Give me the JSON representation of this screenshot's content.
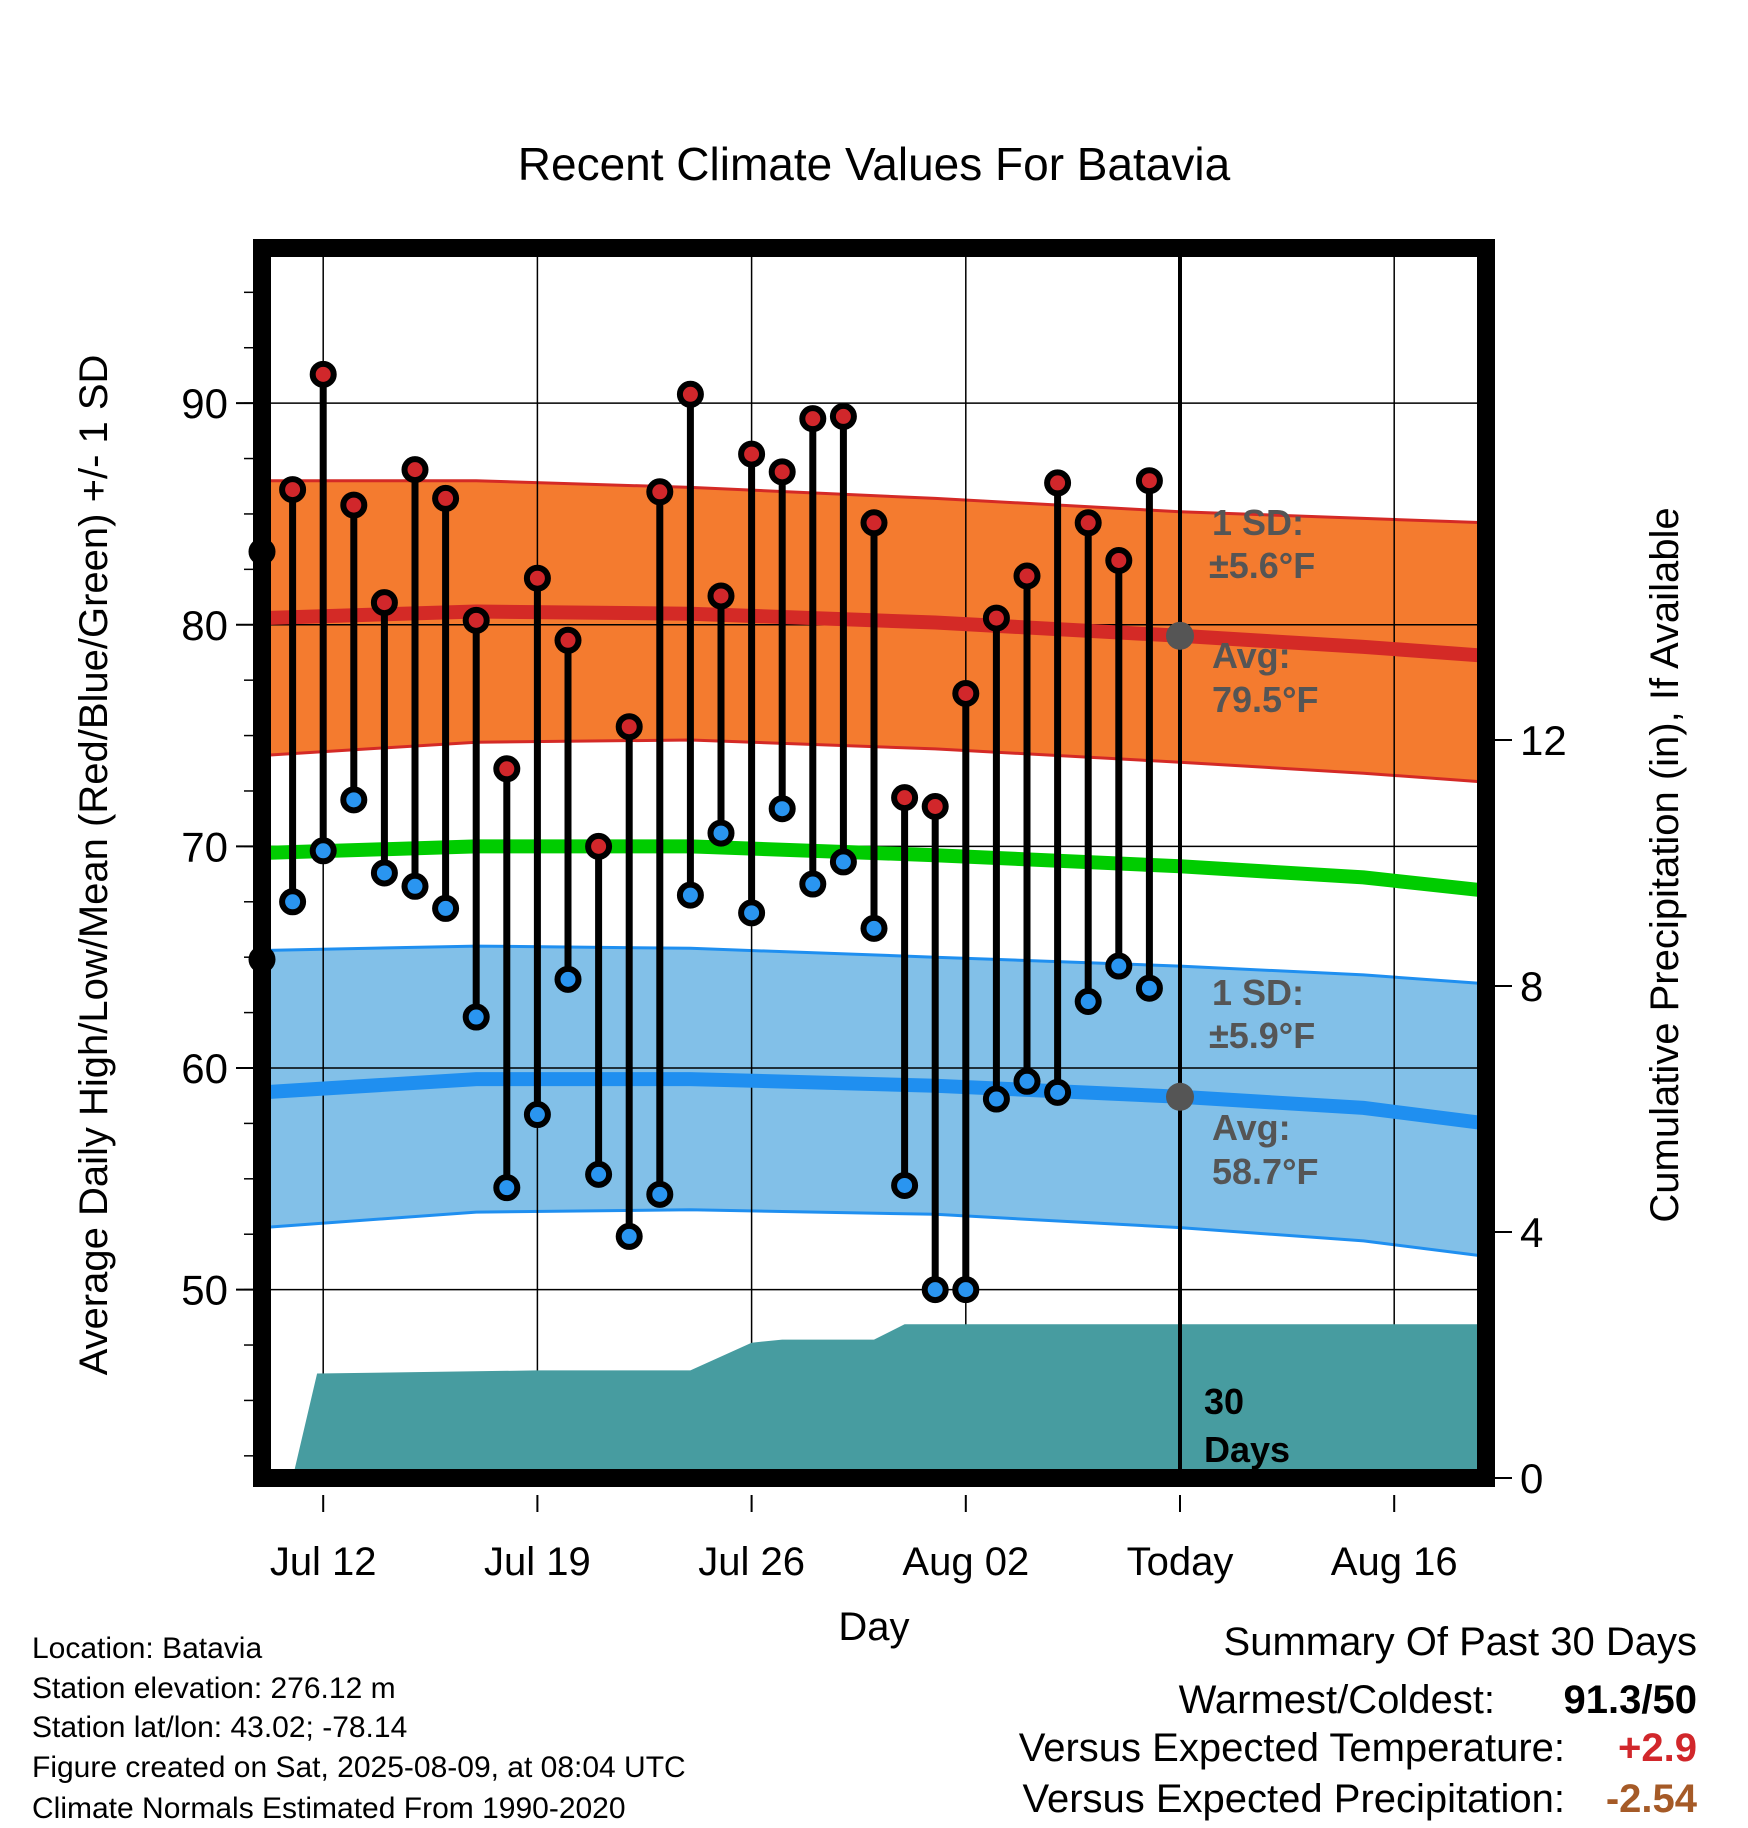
{
  "chart_data": {
    "type": "line",
    "title": "Recent Climate Values For Batavia",
    "xlabel": "Day",
    "ylabel": "Average Daily High/Low/Mean (Red/Blue/Green) +/- 1 SD",
    "y2label": "Cumulative Precipitation (in), If Available",
    "ylim": [
      41.5,
      97
    ],
    "y_ticks": [
      50,
      60,
      70,
      80,
      90
    ],
    "y2lim": [
      0,
      20
    ],
    "y2_ticks": [
      0,
      4,
      8,
      12
    ],
    "x_range": [
      "Jul 10",
      "Aug 19"
    ],
    "x_ticks": [
      "Jul 12",
      "Jul 19",
      "Jul 26",
      "Aug 02",
      "Today",
      "Aug 16"
    ],
    "today": "Aug 09",
    "grid": true,
    "observed": [
      {
        "day": "Jul 10",
        "high": 83.3,
        "low": 64.9
      },
      {
        "day": "Jul 11",
        "high": 86.1,
        "low": 67.5
      },
      {
        "day": "Jul 12",
        "high": 91.3,
        "low": 69.8
      },
      {
        "day": "Jul 13",
        "high": 85.4,
        "low": 72.1
      },
      {
        "day": "Jul 14",
        "high": 81.0,
        "low": 68.8
      },
      {
        "day": "Jul 15",
        "high": 87.0,
        "low": 68.2
      },
      {
        "day": "Jul 16",
        "high": 85.7,
        "low": 67.2
      },
      {
        "day": "Jul 17",
        "high": 80.2,
        "low": 62.3
      },
      {
        "day": "Jul 18",
        "high": 73.5,
        "low": 54.6
      },
      {
        "day": "Jul 19",
        "high": 82.1,
        "low": 57.9
      },
      {
        "day": "Jul 20",
        "high": 79.3,
        "low": 64.0
      },
      {
        "day": "Jul 21",
        "high": 70.0,
        "low": 55.2
      },
      {
        "day": "Jul 22",
        "high": 75.4,
        "low": 52.4
      },
      {
        "day": "Jul 23",
        "high": 86.0,
        "low": 54.3
      },
      {
        "day": "Jul 24",
        "high": 90.4,
        "low": 67.8
      },
      {
        "day": "Jul 25",
        "high": 81.3,
        "low": 70.6
      },
      {
        "day": "Jul 26",
        "high": 87.7,
        "low": 67.0
      },
      {
        "day": "Jul 27",
        "high": 86.9,
        "low": 71.7
      },
      {
        "day": "Jul 28",
        "high": 89.3,
        "low": 68.3
      },
      {
        "day": "Jul 29",
        "high": 89.4,
        "low": 69.3
      },
      {
        "day": "Jul 30",
        "high": 84.6,
        "low": 66.3
      },
      {
        "day": "Jul 31",
        "high": 72.2,
        "low": 54.7
      },
      {
        "day": "Aug 01",
        "high": 71.8,
        "low": 50.0
      },
      {
        "day": "Aug 02",
        "high": 76.9,
        "low": 50.0
      },
      {
        "day": "Aug 03",
        "high": 80.3,
        "low": 58.6
      },
      {
        "day": "Aug 04",
        "high": 82.2,
        "low": 59.4
      },
      {
        "day": "Aug 05",
        "high": 86.4,
        "low": 58.9
      },
      {
        "day": "Aug 06",
        "high": 84.6,
        "low": 63.0
      },
      {
        "day": "Aug 07",
        "high": 82.9,
        "low": 64.6
      },
      {
        "day": "Aug 08",
        "high": 86.5,
        "low": 63.6
      }
    ],
    "normals": [
      {
        "day": "Jul 09.7",
        "high": 80.3,
        "low": 58.9,
        "mean": 69.7,
        "high_sd_lo": 74.1,
        "high_sd_hi": 86.5,
        "low_sd_lo": 52.8,
        "low_sd_hi": 65.3
      },
      {
        "day": "Jul 17",
        "high": 80.6,
        "low": 59.5,
        "mean": 70.0,
        "high_sd_lo": 74.7,
        "high_sd_hi": 86.5,
        "low_sd_lo": 53.5,
        "low_sd_hi": 65.5
      },
      {
        "day": "Jul 24",
        "high": 80.5,
        "low": 59.5,
        "mean": 70.0,
        "high_sd_lo": 74.8,
        "high_sd_hi": 86.2,
        "low_sd_lo": 53.6,
        "low_sd_hi": 65.4
      },
      {
        "day": "Aug 01",
        "high": 80.1,
        "low": 59.2,
        "mean": 69.6,
        "high_sd_lo": 74.4,
        "high_sd_hi": 85.7,
        "low_sd_lo": 53.4,
        "low_sd_hi": 65.0
      },
      {
        "day": "Aug 09",
        "high": 79.5,
        "low": 58.7,
        "mean": 69.1,
        "high_sd_lo": 73.8,
        "high_sd_hi": 85.1,
        "low_sd_lo": 52.8,
        "low_sd_hi": 64.6
      },
      {
        "day": "Aug 15",
        "high": 79.0,
        "low": 58.2,
        "mean": 68.6,
        "high_sd_lo": 73.3,
        "high_sd_hi": 84.8,
        "low_sd_lo": 52.2,
        "low_sd_hi": 64.2
      },
      {
        "day": "Aug 19",
        "high": 78.6,
        "low": 57.5,
        "mean": 68.0,
        "high_sd_lo": 72.9,
        "high_sd_hi": 84.6,
        "low_sd_lo": 51.5,
        "low_sd_hi": 63.8
      }
    ],
    "precip_cumulative": [
      {
        "day": "Jul 10",
        "value": 0
      },
      {
        "day": "Jul 11",
        "value": 0
      },
      {
        "day": "Jul 11.8",
        "value": 1.7
      },
      {
        "day": "Jul 19",
        "value": 1.75
      },
      {
        "day": "Jul 24",
        "value": 1.75
      },
      {
        "day": "Jul 26",
        "value": 2.2
      },
      {
        "day": "Jul 27",
        "value": 2.25
      },
      {
        "day": "Jul 30",
        "value": 2.25
      },
      {
        "day": "Jul 31",
        "value": 2.5
      },
      {
        "day": "Aug 19",
        "value": 2.5
      }
    ],
    "annotations": {
      "high_sd": "1 SD:",
      "high_sd_value": "±5.6°F",
      "high_avg": "Avg:",
      "high_avg_value": "79.5°F",
      "low_sd": "1 SD:",
      "low_sd_value": "±5.9°F",
      "low_avg": "Avg:",
      "low_avg_value": "58.7°F",
      "days_num": "30",
      "days_word": "Days"
    },
    "colors": {
      "high_band": "#f47b2f",
      "high_line": "#d42a26",
      "low_band": "#82c0e8",
      "low_line": "#1f8ff0",
      "mean_line": "#00cc00",
      "precip": "#479ca0",
      "high_dot": "#d1272b",
      "low_dot": "#2a95f0",
      "today_dot": "#555555",
      "annotation_text": "#555555",
      "warm_value": "#d1272b",
      "precip_value": "#a55a27"
    }
  },
  "footer": [
    "Location: Batavia",
    "Station elevation: 276.12 m",
    "Station lat/lon: 43.02; -78.14",
    "Figure created on Sat, 2025-08-09, at 08:04 UTC",
    "Climate Normals Estimated From 1990-2020"
  ],
  "summary": {
    "title": "Summary Of Past 30 Days",
    "rows": [
      {
        "label": "Warmest/Coldest:",
        "value": "91.3/50",
        "color": "#000000"
      },
      {
        "label": "Versus Expected Temperature:",
        "value": "+2.9",
        "color": "#d1272b"
      },
      {
        "label": "Versus Expected Precipitation:",
        "value": "-2.54",
        "color": "#a55a27"
      }
    ]
  }
}
